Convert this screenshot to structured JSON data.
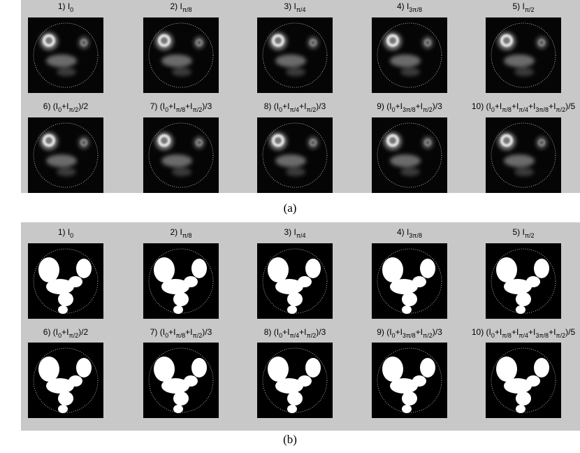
{
  "panels": [
    {
      "caption": "(a)",
      "titles": [
        [
          {
            "text": "1) I"
          },
          {
            "sub": "0"
          }
        ],
        [
          {
            "text": "2) I"
          },
          {
            "sub": "π/8"
          }
        ],
        [
          {
            "text": "3) I"
          },
          {
            "sub": "π/4"
          }
        ],
        [
          {
            "text": "4) I"
          },
          {
            "sub": "3π/8"
          }
        ],
        [
          {
            "text": "5) I"
          },
          {
            "sub": "π/2"
          }
        ],
        [
          {
            "text": "6) (I"
          },
          {
            "sub": "0"
          },
          {
            "text": "+I"
          },
          {
            "sub": "π/2"
          },
          {
            "text": ")/2"
          }
        ],
        [
          {
            "text": "7) (I"
          },
          {
            "sub": "0"
          },
          {
            "text": "+I"
          },
          {
            "sub": "π/8"
          },
          {
            "text": "+I"
          },
          {
            "sub": "π/2"
          },
          {
            "text": ")/3"
          }
        ],
        [
          {
            "text": "8) (I"
          },
          {
            "sub": "0"
          },
          {
            "text": "+I"
          },
          {
            "sub": "π/4"
          },
          {
            "text": "+I"
          },
          {
            "sub": "π/2"
          },
          {
            "text": ")/3"
          }
        ],
        [
          {
            "text": "9) (I"
          },
          {
            "sub": "0"
          },
          {
            "text": "+I"
          },
          {
            "sub": "3π/8"
          },
          {
            "text": "+I"
          },
          {
            "sub": "π/2"
          },
          {
            "text": ")/3"
          }
        ],
        [
          {
            "text": "10) (I"
          },
          {
            "sub": "0"
          },
          {
            "text": "+I"
          },
          {
            "sub": "π/8"
          },
          {
            "text": "+I"
          },
          {
            "sub": "π/4"
          },
          {
            "text": "+I"
          },
          {
            "sub": "3π/8"
          },
          {
            "text": "+I"
          },
          {
            "sub": "π/2"
          },
          {
            "text": ")/5"
          }
        ]
      ]
    },
    {
      "caption": "(b)",
      "titles": [
        [
          {
            "text": "1) I"
          },
          {
            "sub": "0"
          }
        ],
        [
          {
            "text": "2) I"
          },
          {
            "sub": "π/8"
          }
        ],
        [
          {
            "text": "3) I"
          },
          {
            "sub": "π/4"
          }
        ],
        [
          {
            "text": "4) I"
          },
          {
            "sub": "3π/8"
          }
        ],
        [
          {
            "text": "5) I"
          },
          {
            "sub": "π/2"
          }
        ],
        [
          {
            "text": "6) (I"
          },
          {
            "sub": "0"
          },
          {
            "text": "+I"
          },
          {
            "sub": "π/2"
          },
          {
            "text": ")/2"
          }
        ],
        [
          {
            "text": "7) (I"
          },
          {
            "sub": "0"
          },
          {
            "text": "+I"
          },
          {
            "sub": "π/8"
          },
          {
            "text": "+I"
          },
          {
            "sub": "π/2"
          },
          {
            "text": ")/3"
          }
        ],
        [
          {
            "text": "8) (I"
          },
          {
            "sub": "0"
          },
          {
            "text": "+I"
          },
          {
            "sub": "π/4"
          },
          {
            "text": "+I"
          },
          {
            "sub": "π/2"
          },
          {
            "text": ")/3"
          }
        ],
        [
          {
            "text": "9) (I"
          },
          {
            "sub": "0"
          },
          {
            "text": "+I"
          },
          {
            "sub": "3π/8"
          },
          {
            "text": "+I"
          },
          {
            "sub": "π/2"
          },
          {
            "text": ")/3"
          }
        ],
        [
          {
            "text": "10) (I"
          },
          {
            "sub": "0"
          },
          {
            "text": "+I"
          },
          {
            "sub": "π/8"
          },
          {
            "text": "+I"
          },
          {
            "sub": "π/4"
          },
          {
            "text": "+I"
          },
          {
            "sub": "3π/8"
          },
          {
            "text": "+I"
          },
          {
            "sub": "π/2"
          },
          {
            "text": ")/5"
          }
        ]
      ]
    }
  ]
}
